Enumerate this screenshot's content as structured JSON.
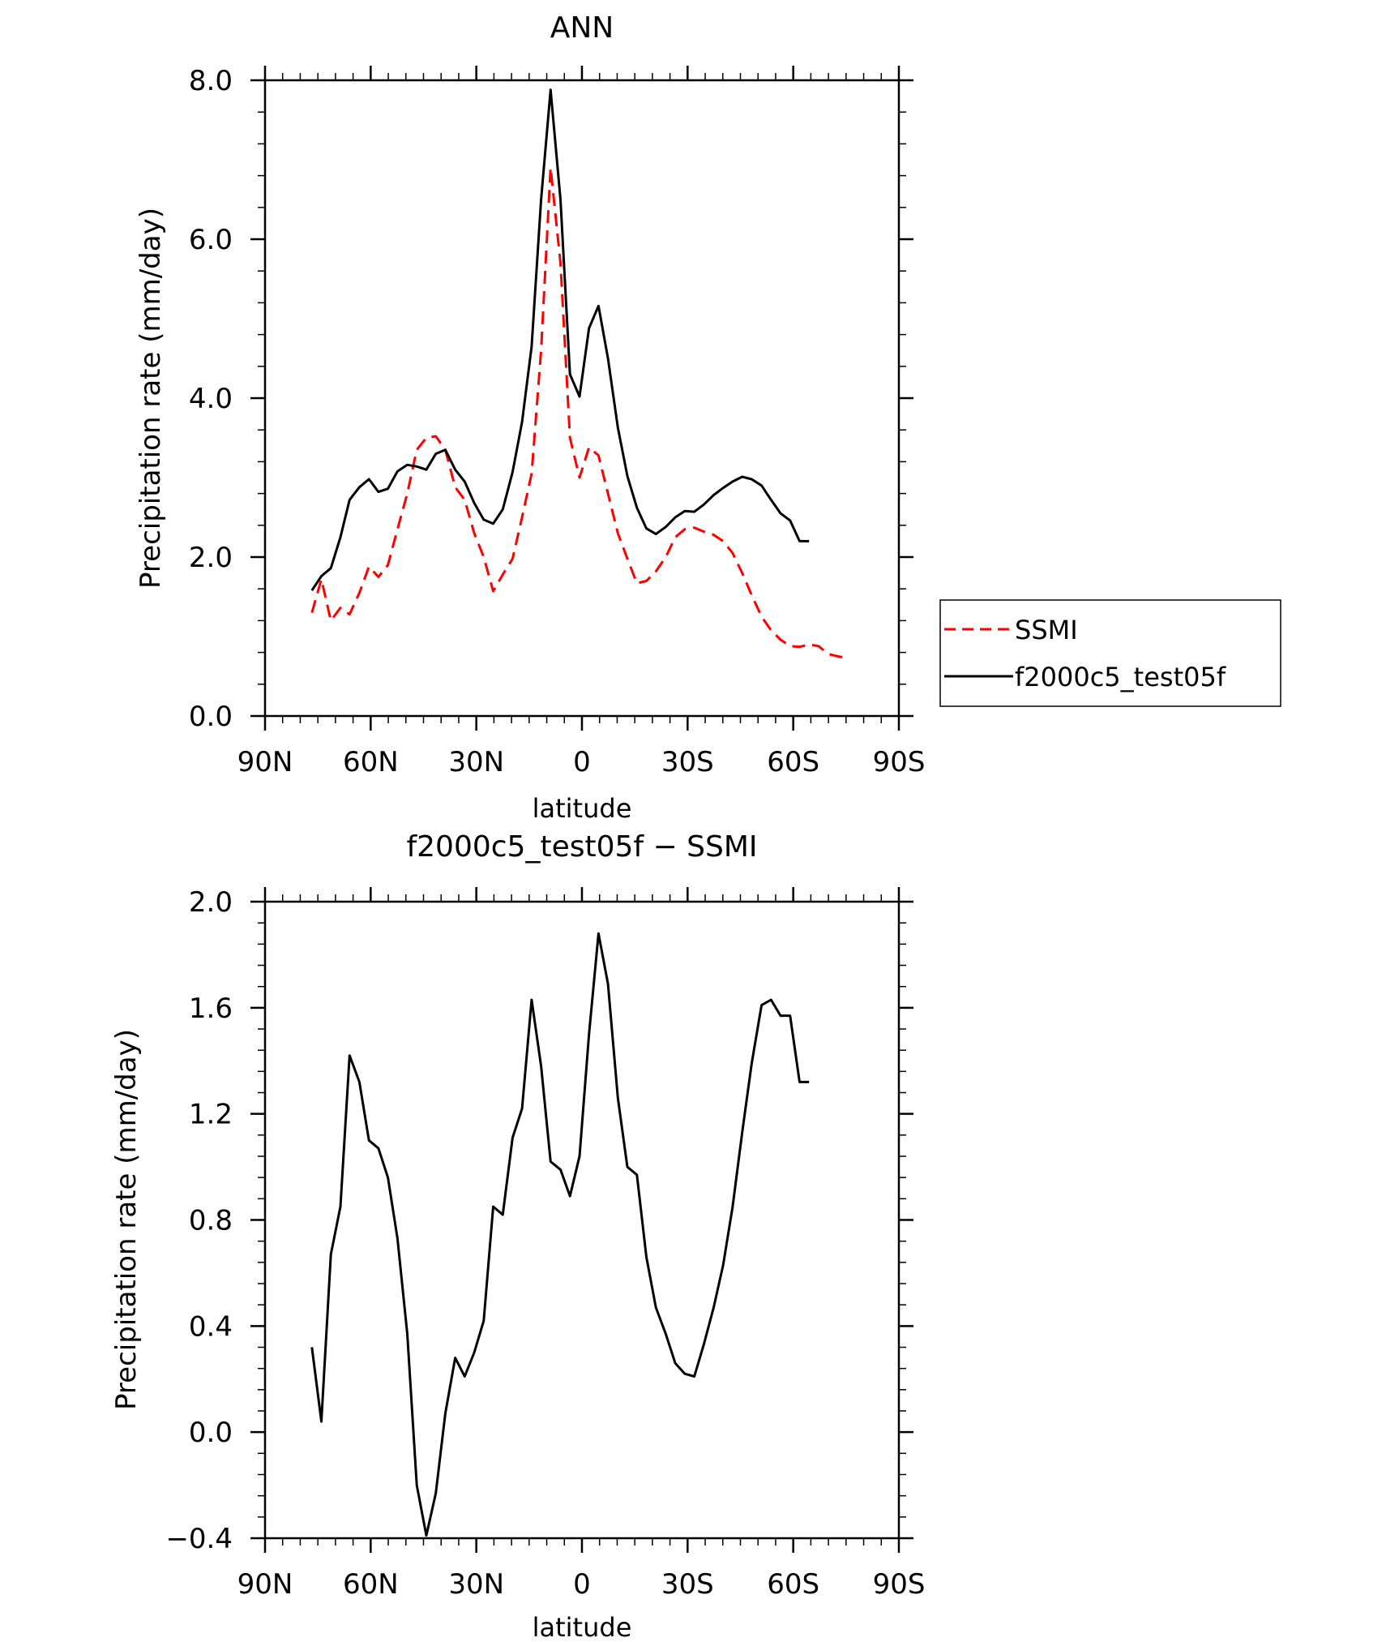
{
  "chart_data": [
    {
      "type": "line",
      "title": "ANN",
      "xlabel": "latitude",
      "ylabel": "Precipitation rate (mm/day)",
      "xlim": [
        -90,
        90
      ],
      "ylim": [
        0,
        8
      ],
      "x_ticks": [
        -90,
        -60,
        -30,
        0,
        30,
        60,
        90
      ],
      "x_tick_labels": [
        "90N",
        "60N",
        "30N",
        "0",
        "30S",
        "60S",
        "90S"
      ],
      "y_ticks": [
        0,
        2,
        4,
        6,
        8
      ],
      "y_tick_labels": [
        "0.0",
        "2.0",
        "4.0",
        "6.0",
        "8.0"
      ],
      "legend": {
        "position": "right",
        "entries": [
          "SSMI",
          "f2000c5_test05f"
        ]
      },
      "series": [
        {
          "name": "SSMI",
          "color": "#ff0000",
          "dash": "dashed",
          "x": [
            -76.7,
            -74.0,
            -71.3,
            -68.6,
            -66.0,
            -63.2,
            -60.5,
            -57.8,
            -55.1,
            -52.4,
            -49.6,
            -46.9,
            -44.2,
            -41.5,
            -38.8,
            -36.0,
            -33.3,
            -30.6,
            -27.9,
            -25.2,
            -22.5,
            -19.7,
            -17.0,
            -14.3,
            -11.6,
            -8.9,
            -6.1,
            -3.4,
            -0.7,
            2.0,
            4.7,
            7.4,
            10.2,
            12.9,
            15.6,
            18.3,
            21.0,
            23.8,
            26.5,
            29.2,
            31.9,
            34.6,
            37.4,
            40.1,
            42.8,
            45.5,
            48.2,
            51.0,
            53.7,
            56.4,
            59.1,
            61.8,
            64.5,
            67.2,
            70.0,
            72.7,
            75.4
          ],
          "y": [
            1.3,
            1.72,
            1.2,
            1.36,
            1.28,
            1.55,
            1.88,
            1.75,
            1.9,
            2.35,
            2.8,
            3.35,
            3.5,
            3.52,
            3.35,
            2.88,
            2.72,
            2.3,
            2.0,
            1.57,
            1.78,
            1.98,
            2.5,
            3.05,
            4.6,
            6.9,
            5.7,
            3.5,
            3.0,
            3.38,
            3.28,
            2.8,
            2.3,
            1.98,
            1.67,
            1.7,
            1.82,
            2.0,
            2.25,
            2.35,
            2.37,
            2.32,
            2.28,
            2.2,
            2.05,
            1.8,
            1.52,
            1.25,
            1.08,
            0.96,
            0.88,
            0.87,
            0.9,
            0.88,
            0.78,
            0.75,
            0.73
          ]
        },
        {
          "name": "f2000c5_test05f",
          "color": "#000000",
          "dash": "solid",
          "x": [
            -76.7,
            -74.0,
            -71.3,
            -68.6,
            -66.0,
            -63.2,
            -60.5,
            -57.8,
            -55.1,
            -52.4,
            -49.6,
            -46.9,
            -44.2,
            -41.5,
            -38.8,
            -36.0,
            -33.3,
            -30.6,
            -27.9,
            -25.2,
            -22.5,
            -19.7,
            -17.0,
            -14.3,
            -11.6,
            -8.9,
            -6.1,
            -3.4,
            -0.7,
            2.0,
            4.7,
            7.4,
            10.2,
            12.9,
            15.6,
            18.3,
            21.0,
            23.8,
            26.5,
            29.2,
            31.9,
            34.6,
            37.4,
            40.1,
            42.8,
            45.5,
            48.2,
            51.0,
            53.7,
            56.4,
            59.1,
            61.8,
            64.5
          ],
          "y": [
            1.58,
            1.76,
            1.86,
            2.25,
            2.72,
            2.88,
            2.98,
            2.82,
            2.86,
            3.08,
            3.16,
            3.14,
            3.1,
            3.3,
            3.35,
            3.1,
            2.95,
            2.68,
            2.47,
            2.42,
            2.6,
            3.07,
            3.7,
            4.65,
            6.5,
            7.88,
            6.5,
            4.3,
            4.02,
            4.88,
            5.16,
            4.5,
            3.63,
            3.02,
            2.62,
            2.36,
            2.29,
            2.38,
            2.5,
            2.58,
            2.57,
            2.66,
            2.78,
            2.87,
            2.95,
            3.01,
            2.98,
            2.9,
            2.72,
            2.55,
            2.46,
            2.2,
            2.2
          ]
        }
      ]
    },
    {
      "type": "line",
      "title": "f2000c5_test05f − SSMI",
      "xlabel": "latitude",
      "ylabel": "Precipitation rate (mm/day)",
      "xlim": [
        -90,
        90
      ],
      "ylim": [
        -0.4,
        2.0
      ],
      "x_ticks": [
        -90,
        -60,
        -30,
        0,
        30,
        60,
        90
      ],
      "x_tick_labels": [
        "90N",
        "60N",
        "30N",
        "0",
        "30S",
        "60S",
        "90S"
      ],
      "y_ticks": [
        -0.4,
        0.0,
        0.4,
        0.8,
        1.2,
        1.6,
        2.0
      ],
      "y_tick_labels": [
        "−0.4",
        "0.0",
        "0.4",
        "0.8",
        "1.2",
        "1.6",
        "2.0"
      ],
      "series": [
        {
          "name": "f2000c5_test05f − SSMI",
          "color": "#000000",
          "dash": "solid",
          "x": [
            -76.7,
            -74.0,
            -71.3,
            -68.6,
            -66.0,
            -63.2,
            -60.5,
            -57.8,
            -55.1,
            -52.4,
            -49.6,
            -46.9,
            -44.2,
            -41.5,
            -38.8,
            -36.0,
            -33.3,
            -30.6,
            -27.9,
            -25.2,
            -22.5,
            -19.7,
            -17.0,
            -14.3,
            -11.6,
            -8.9,
            -6.1,
            -3.4,
            -0.7,
            2.0,
            4.7,
            7.4,
            10.2,
            12.9,
            15.6,
            18.3,
            21.0,
            23.8,
            26.5,
            29.2,
            31.9,
            34.6,
            37.4,
            40.1,
            42.8,
            45.5,
            48.2,
            51.0,
            53.7,
            56.4,
            59.1,
            61.8,
            64.5
          ],
          "y": [
            0.32,
            0.04,
            0.67,
            0.85,
            1.42,
            1.32,
            1.1,
            1.07,
            0.96,
            0.73,
            0.37,
            -0.2,
            -0.39,
            -0.23,
            0.07,
            0.28,
            0.21,
            0.3,
            0.42,
            0.85,
            0.82,
            1.11,
            1.22,
            1.63,
            1.38,
            1.02,
            0.99,
            0.89,
            1.04,
            1.5,
            1.88,
            1.69,
            1.26,
            1.0,
            0.97,
            0.66,
            0.47,
            0.37,
            0.26,
            0.22,
            0.21,
            0.33,
            0.47,
            0.63,
            0.85,
            1.13,
            1.39,
            1.61,
            1.63,
            1.57,
            1.57,
            1.32,
            1.32
          ]
        }
      ]
    }
  ]
}
